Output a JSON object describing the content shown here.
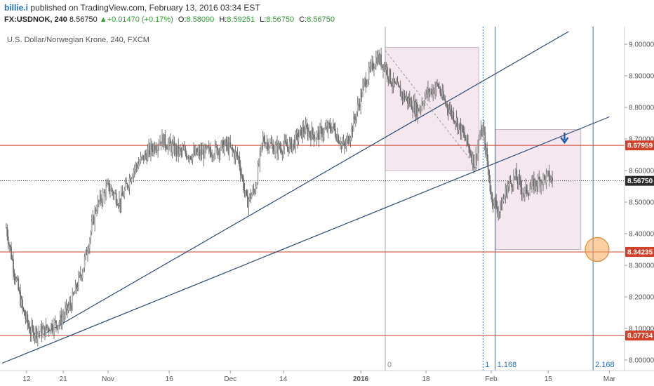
{
  "header": {
    "author": "billie.i",
    "published": "published on TradingView.com, February 13, 2016 03:34 EST",
    "symbol": "FX:USDNOK, 240",
    "last": "8.56750",
    "change": "+0.01470 (+0.17%)",
    "open_label": "O:",
    "open": "8.58090",
    "high_label": "H:",
    "high": "8.59251",
    "low_label": "L:",
    "low": "8.56750",
    "close_label": "C:",
    "close": "8.56750"
  },
  "chart_data": {
    "type": "candlestick",
    "title": "U.S. Dollar/Norwegian Krone, 240, FXCM",
    "ylim": [
      7.97,
      9.07
    ],
    "y_ticks": [
      "9.00000",
      "8.90000",
      "8.80000",
      "8.70000",
      "8.60000",
      "8.50000",
      "8.40000",
      "8.30000",
      "8.20000",
      "8.10000",
      "8.00000"
    ],
    "x_ticks": [
      {
        "label": "12",
        "t": 5
      },
      {
        "label": "21",
        "t": 14
      },
      {
        "label": "Nov",
        "t": 25
      },
      {
        "label": "16",
        "t": 40
      },
      {
        "label": "Dec",
        "t": 55
      },
      {
        "label": "14",
        "t": 68
      },
      {
        "label": "2016",
        "t": 87
      },
      {
        "label": "18",
        "t": 103
      },
      {
        "label": "Feb",
        "t": 119
      },
      {
        "label": "15",
        "t": 133
      },
      {
        "label": "Mar",
        "t": 148
      }
    ],
    "price_path": [
      [
        0,
        8.42
      ],
      [
        2,
        8.28
      ],
      [
        4,
        8.16
      ],
      [
        6,
        8.09
      ],
      [
        9,
        8.09
      ],
      [
        11,
        8.11
      ],
      [
        13,
        8.12
      ],
      [
        16,
        8.18
      ],
      [
        19,
        8.3
      ],
      [
        22,
        8.48
      ],
      [
        25,
        8.55
      ],
      [
        28,
        8.5
      ],
      [
        31,
        8.6
      ],
      [
        35,
        8.66
      ],
      [
        38,
        8.7
      ],
      [
        42,
        8.66
      ],
      [
        46,
        8.65
      ],
      [
        50,
        8.66
      ],
      [
        54,
        8.68
      ],
      [
        57,
        8.64
      ],
      [
        59,
        8.5
      ],
      [
        61,
        8.54
      ],
      [
        63,
        8.7
      ],
      [
        66,
        8.67
      ],
      [
        70,
        8.68
      ],
      [
        73,
        8.73
      ],
      [
        76,
        8.71
      ],
      [
        80,
        8.74
      ],
      [
        83,
        8.67
      ],
      [
        85,
        8.74
      ],
      [
        88,
        8.88
      ],
      [
        91,
        8.96
      ],
      [
        93,
        8.93
      ],
      [
        95,
        8.87
      ],
      [
        98,
        8.83
      ],
      [
        101,
        8.79
      ],
      [
        103,
        8.84
      ],
      [
        106,
        8.87
      ],
      [
        107,
        8.83
      ],
      [
        110,
        8.77
      ],
      [
        113,
        8.69
      ],
      [
        115,
        8.62
      ],
      [
        116,
        8.7
      ],
      [
        117,
        8.73
      ],
      [
        118,
        8.63
      ],
      [
        119,
        8.52
      ],
      [
        121,
        8.47
      ],
      [
        123,
        8.55
      ],
      [
        125,
        8.58
      ],
      [
        127,
        8.53
      ],
      [
        129,
        8.55
      ],
      [
        131,
        8.57
      ],
      [
        133,
        8.58
      ],
      [
        134,
        8.5675
      ]
    ],
    "horizontal_levels": [
      {
        "price": 8.67959,
        "label": "8.67959",
        "color": "#d2402a"
      },
      {
        "price": 8.34235,
        "label": "8.34235",
        "color": "#d2402a"
      },
      {
        "price": 8.07734,
        "label": "8.07734",
        "color": "#d2402a"
      }
    ],
    "last_price": {
      "price": 8.5675,
      "label": "8.56750"
    },
    "trend_lines": [
      {
        "from": [
          -1,
          7.99
        ],
        "to": [
          148,
          8.77
        ]
      },
      {
        "from": [
          9,
          8.08
        ],
        "to": [
          138,
          9.04
        ]
      }
    ],
    "diagonal_dashed": {
      "from": [
        93,
        8.98
      ],
      "to": [
        116,
        8.6
      ]
    },
    "rectangles": [
      {
        "t1": 93,
        "t2": 116,
        "p1": 8.6,
        "p2": 8.99
      },
      {
        "t1": 120,
        "t2": 141,
        "p1": 8.35,
        "p2": 8.73
      }
    ],
    "fib_verticals": [
      {
        "t": 93,
        "label": "0",
        "color": "#aaaaaa",
        "dashed": false
      },
      {
        "t": 117,
        "label": "1",
        "color": "#2a6fb8",
        "dashed": true
      },
      {
        "t": 120,
        "label": "1.168",
        "color": "#2a6fb8",
        "dashed": false
      },
      {
        "t": 144,
        "label": "2.168",
        "color": "#2a6fb8",
        "dashed": false
      }
    ],
    "down_arrow": {
      "t": 137,
      "price": 8.7
    },
    "target_circle": {
      "t": 145,
      "price": 8.35
    }
  }
}
